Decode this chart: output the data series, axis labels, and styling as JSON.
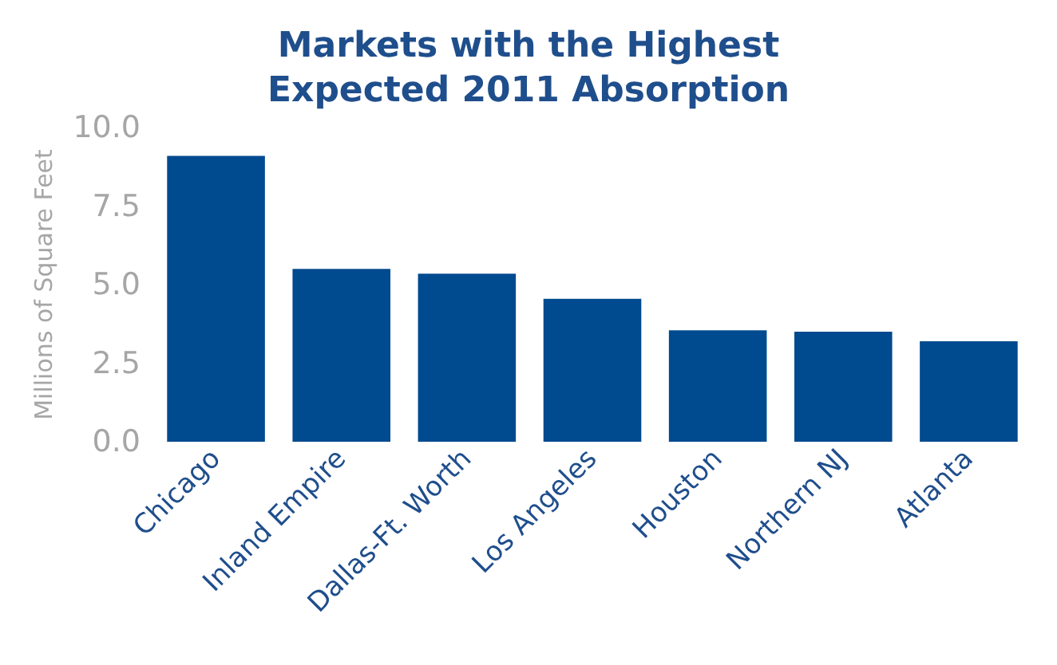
{
  "chart_data": {
    "type": "bar",
    "title": "Markets with the Highest\nExpected 2011 Absorption",
    "ylabel": "Millions of Square Feet",
    "categories": [
      "Chicago",
      "Inland Empire",
      "Dallas-Ft. Worth",
      "Los Angeles",
      "Houston",
      "Northern NJ",
      "Atlanta"
    ],
    "values": [
      9.1,
      5.5,
      5.35,
      4.55,
      3.55,
      3.5,
      3.2
    ],
    "color": "#004a8f",
    "ylim": [
      0,
      10
    ],
    "yticks": [
      {
        "value": 0,
        "label": "0.0"
      },
      {
        "value": 2.5,
        "label": "2.5"
      },
      {
        "value": 5,
        "label": "5.0"
      },
      {
        "value": 7.5,
        "label": "7.5"
      },
      {
        "value": 10,
        "label": "10.0"
      }
    ],
    "grid": false
  }
}
